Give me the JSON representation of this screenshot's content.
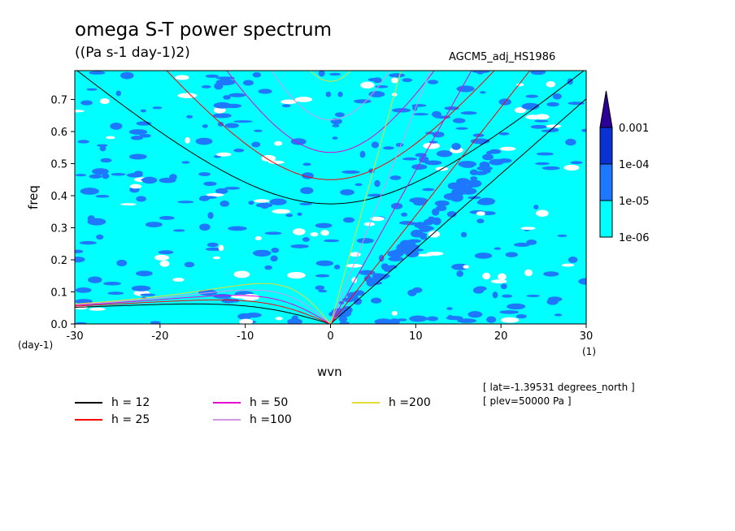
{
  "header": {
    "title": "omega S-T power spectrum",
    "subtitle": "((Pa s-1 day-1)2)",
    "run": "AGCM5_adj_HS1986"
  },
  "notes": [
    "[ lat=-1.39531 degrees_north ]",
    "[ plev=50000 Pa ]"
  ],
  "chart_data": {
    "type": "heatmap",
    "xlabel": "wvn",
    "ylabel": "freq",
    "xunit": "(1)",
    "yunit": "(day-1)",
    "xlim": [
      -30,
      30
    ],
    "ylim": [
      0,
      0.79
    ],
    "xticks": [
      -30,
      -20,
      -10,
      0,
      10,
      20,
      30
    ],
    "xtick_labels": [
      "-30",
      "-20",
      "-10",
      "0",
      "10",
      "20",
      "30"
    ],
    "yticks": [
      0,
      0.1,
      0.2,
      0.3,
      0.4,
      0.5,
      0.6,
      0.7
    ],
    "ytick_labels": [
      "0.0",
      "0.1",
      "0.2",
      "0.3",
      "0.4",
      "0.5",
      "0.6",
      "0.7"
    ],
    "colorbar": {
      "levels": [
        "1e-06",
        "1e-05",
        "1e-04",
        "0.001"
      ],
      "colors": [
        "#ffffff",
        "#00ffff",
        "#1e78ff",
        "#0a32d2",
        "#2d0096"
      ],
      "extend": "max"
    },
    "field_description": "power mostly in 1e-06 to 1e-05 band, patches of 1e-05 to 1e-04, enhanced power along eastward Kelvin ridge near wvn 0-20",
    "dispersion_curves": [
      {
        "name": "h = 12",
        "equivalent_depth": 12,
        "color": "#000000"
      },
      {
        "name": "h = 25",
        "equivalent_depth": 25,
        "color": "#ff0000"
      },
      {
        "name": "h = 50",
        "equivalent_depth": 50,
        "color": "#e600d2"
      },
      {
        "name": "h =100",
        "equivalent_depth": 100,
        "color": "#d296e6"
      },
      {
        "name": "h =200",
        "equivalent_depth": 200,
        "color": "#e6dc32"
      }
    ]
  }
}
